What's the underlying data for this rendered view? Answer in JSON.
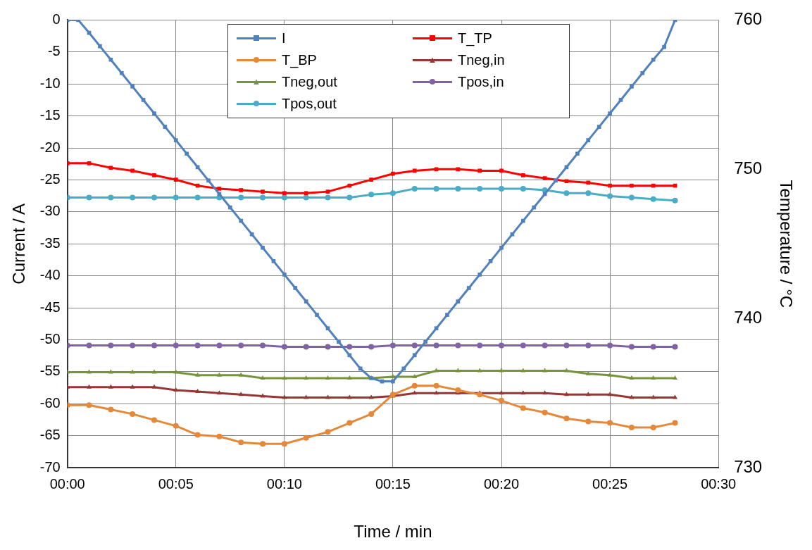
{
  "chart_data": {
    "type": "line",
    "xlabel": "Time / min",
    "ylabel": "Current / A",
    "y2label": "Temperature / °C",
    "xlim": [
      0,
      30
    ],
    "xticks": [
      {
        "value": 0,
        "label": "00:00"
      },
      {
        "value": 5,
        "label": "00:05"
      },
      {
        "value": 10,
        "label": "00:10"
      },
      {
        "value": 15,
        "label": "00:15"
      },
      {
        "value": 20,
        "label": "00:20"
      },
      {
        "value": 25,
        "label": "00:25"
      },
      {
        "value": 30,
        "label": "00:30"
      }
    ],
    "ylim": [
      -70,
      0
    ],
    "yticks": [
      -70,
      -65,
      -60,
      -55,
      -50,
      -45,
      -40,
      -35,
      -30,
      -25,
      -20,
      -15,
      -10,
      -5,
      0
    ],
    "y2lim": [
      730,
      760
    ],
    "y2ticks": [
      730,
      740,
      750,
      760
    ],
    "grid": true,
    "legend": "top",
    "line_style": "solid",
    "series": [
      {
        "name": "I",
        "color": "#4f81bd",
        "marker": "square",
        "x": [
          0,
          0.5,
          1,
          1.5,
          2,
          2.5,
          3,
          3.5,
          4,
          4.5,
          5,
          5.5,
          6,
          6.5,
          7,
          7.5,
          8,
          8.5,
          9,
          9.5,
          10,
          10.5,
          11,
          11.5,
          12,
          12.5,
          13,
          13.5,
          14,
          14.5,
          15,
          15.5,
          16,
          16.5,
          17,
          17.5,
          18,
          18.5,
          19,
          19.5,
          20,
          20.5,
          21,
          21.5,
          22,
          22.5,
          23,
          23.5,
          24,
          24.5,
          25,
          25.5,
          26,
          26.5,
          27,
          27.5,
          28
        ],
        "values": [
          0,
          0,
          -2,
          -4.1,
          -6.2,
          -8.3,
          -10.4,
          -12.5,
          -14.6,
          -16.7,
          -18.8,
          -20.9,
          -23,
          -25.1,
          -27.2,
          -29.3,
          -31.4,
          -33.5,
          -35.6,
          -37.7,
          -39.8,
          -41.9,
          -44,
          -46.1,
          -48.2,
          -50.3,
          -52.4,
          -54.5,
          -56,
          -56.5,
          -56.5,
          -54.5,
          -52.4,
          -50.3,
          -48.2,
          -46.1,
          -44,
          -41.9,
          -39.8,
          -37.7,
          -35.6,
          -33.5,
          -31.4,
          -29.3,
          -27.2,
          -25.1,
          -23,
          -20.9,
          -18.8,
          -16.7,
          -14.6,
          -12.5,
          -10.4,
          -8.3,
          -6.2,
          -4.2,
          0
        ]
      },
      {
        "name": "T_TP",
        "color": "#ff0000",
        "marker": "square",
        "axis": "y2",
        "values": [
          750.4,
          750.4,
          750.1,
          749.9,
          749.6,
          749.3,
          748.9,
          748.7,
          748.6,
          748.5,
          748.4,
          748.4,
          748.5,
          748.9,
          749.3,
          749.7,
          749.9,
          750.0,
          750.0,
          749.9,
          749.9,
          749.6,
          749.4,
          749.2,
          749.1,
          748.9,
          748.9,
          748.9,
          748.9
        ]
      },
      {
        "name": "T_BP",
        "color": "#e6883a",
        "marker": "circle",
        "axis": "y2",
        "values": [
          734.2,
          734.2,
          733.9,
          733.6,
          733.2,
          732.8,
          732.2,
          732.1,
          731.7,
          731.6,
          731.6,
          732.0,
          732.4,
          733.0,
          733.6,
          734.9,
          735.5,
          735.5,
          735.2,
          734.9,
          734.5,
          734.0,
          733.7,
          733.3,
          733.1,
          733.0,
          732.7,
          732.7,
          733.0
        ]
      },
      {
        "name": "Tneg,in",
        "color": "#953735",
        "marker": "triangle",
        "axis": "y2",
        "values": [
          735.4,
          735.4,
          735.4,
          735.4,
          735.4,
          735.2,
          735.1,
          735.0,
          734.9,
          734.8,
          734.7,
          734.7,
          734.7,
          734.7,
          734.7,
          734.8,
          735.0,
          735.0,
          735.0,
          735.0,
          735.0,
          735.0,
          735.0,
          734.9,
          734.9,
          734.9,
          734.7,
          734.7,
          734.7
        ]
      },
      {
        "name": "Tneg,out",
        "color": "#77933c",
        "marker": "triangle",
        "axis": "y2",
        "values": [
          736.4,
          736.4,
          736.4,
          736.4,
          736.4,
          736.4,
          736.2,
          736.2,
          736.2,
          736.0,
          736.0,
          736.0,
          736.0,
          736.0,
          736.0,
          736.1,
          736.1,
          736.5,
          736.5,
          736.5,
          736.5,
          736.5,
          736.5,
          736.5,
          736.3,
          736.2,
          736.0,
          736.0,
          736.0
        ]
      },
      {
        "name": "Tpos,in",
        "color": "#8064a2",
        "marker": "circle",
        "axis": "y2",
        "values": [
          738.2,
          738.2,
          738.2,
          738.2,
          738.2,
          738.2,
          738.2,
          738.2,
          738.2,
          738.2,
          738.1,
          738.1,
          738.1,
          738.1,
          738.1,
          738.2,
          738.2,
          738.2,
          738.2,
          738.2,
          738.2,
          738.2,
          738.2,
          738.2,
          738.2,
          738.2,
          738.1,
          738.1,
          738.1
        ]
      },
      {
        "name": "Tpos,out",
        "color": "#4bacc6",
        "marker": "circle",
        "axis": "y2",
        "values": [
          748.1,
          748.1,
          748.1,
          748.1,
          748.1,
          748.1,
          748.1,
          748.1,
          748.1,
          748.1,
          748.1,
          748.1,
          748.1,
          748.1,
          748.3,
          748.4,
          748.7,
          748.7,
          748.7,
          748.7,
          748.7,
          748.7,
          748.6,
          748.4,
          748.4,
          748.2,
          748.1,
          748.0,
          747.9
        ]
      }
    ],
    "x": [
      0,
      1,
      2,
      3,
      4,
      5,
      6,
      7,
      8,
      9,
      10,
      11,
      12,
      13,
      14,
      15,
      16,
      17,
      18,
      19,
      20,
      21,
      22,
      23,
      24,
      25,
      26,
      27,
      28
    ]
  }
}
